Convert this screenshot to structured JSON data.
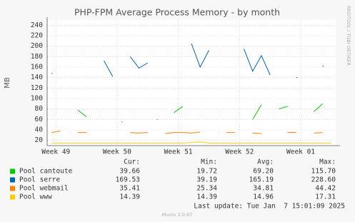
{
  "chart_data": {
    "type": "line",
    "title": "PHP-FPM Average Process Memory - by month",
    "y_label": "MB",
    "watermark": "RRDTOOL / TOBI OETIKER",
    "x": [
      -0.5,
      0.5,
      1.5,
      2.5,
      3.5,
      4.5,
      5.5,
      6.5,
      7.5,
      8.5,
      9.5,
      10.5,
      11.5,
      12.5,
      13.5,
      14.5,
      15.5,
      16.5,
      17.5,
      18.5,
      19.5,
      20.5,
      21.5,
      22.5,
      23.5,
      24.5,
      25.5,
      26.5,
      27.5,
      28.5,
      29.5,
      30.5,
      31.5
    ],
    "xlim": [
      -1,
      32
    ],
    "xticks": [
      {
        "value": 0,
        "label": "Week 49"
      },
      {
        "value": 7,
        "label": "Week 50"
      },
      {
        "value": 14,
        "label": "Week 51"
      },
      {
        "value": 21,
        "label": "Week 52"
      },
      {
        "value": 28,
        "label": "Week 01"
      }
    ],
    "ylim": [
      10,
      250
    ],
    "yticks": [
      20,
      40,
      60,
      80,
      100,
      120,
      140,
      160,
      180,
      200,
      220,
      240
    ],
    "grid": true,
    "stat_headers": [
      "Cur:",
      "Min:",
      "Avg:",
      "Max:"
    ],
    "series": [
      {
        "name": "Pool cantoute",
        "color": "#00cc00",
        "stats": [
          "39.66",
          "19.72",
          "69.20",
          "115.70"
        ],
        "values": [
          null,
          null,
          null,
          78,
          65,
          null,
          null,
          null,
          55,
          null,
          null,
          null,
          60,
          null,
          73,
          85,
          null,
          null,
          null,
          null,
          null,
          null,
          null,
          60,
          88,
          null,
          80,
          85,
          null,
          null,
          75,
          90,
          null
        ]
      },
      {
        "name": "Pool serre",
        "color": "#0066b3",
        "stats": [
          "169.53",
          "39.19",
          "165.19",
          "228.60"
        ],
        "values": [
          148,
          null,
          null,
          null,
          null,
          null,
          172,
          142,
          null,
          180,
          158,
          168,
          null,
          null,
          null,
          null,
          205,
          160,
          192,
          null,
          null,
          null,
          195,
          152,
          182,
          145,
          null,
          null,
          140,
          null,
          null,
          162,
          null
        ]
      },
      {
        "name": "Pool webmail",
        "color": "#ff8000",
        "stats": [
          "35.41",
          "25.34",
          "34.81",
          "44.42"
        ],
        "values": [
          35,
          38,
          null,
          35,
          35,
          null,
          null,
          null,
          null,
          35,
          34,
          35,
          null,
          33,
          35,
          35,
          34,
          36,
          null,
          null,
          35,
          35,
          null,
          34,
          33,
          null,
          null,
          35,
          35,
          null,
          34,
          35,
          null
        ]
      },
      {
        "name": "Pool www",
        "color": "#ffcc00",
        "stats": [
          "14.39",
          "14.39",
          "14.96",
          "17.31"
        ],
        "values": [
          15,
          15,
          15,
          15,
          15,
          15,
          15,
          15,
          15,
          15,
          15,
          15,
          15,
          15,
          15,
          15,
          16,
          17,
          15,
          15,
          15,
          15,
          15,
          15,
          15,
          15,
          15,
          15,
          15,
          15,
          15,
          15,
          15
        ]
      }
    ],
    "last_update": "Last update: Tue Jan  7 15:01:09 2025",
    "footer": "Munin 2.0.67"
  }
}
